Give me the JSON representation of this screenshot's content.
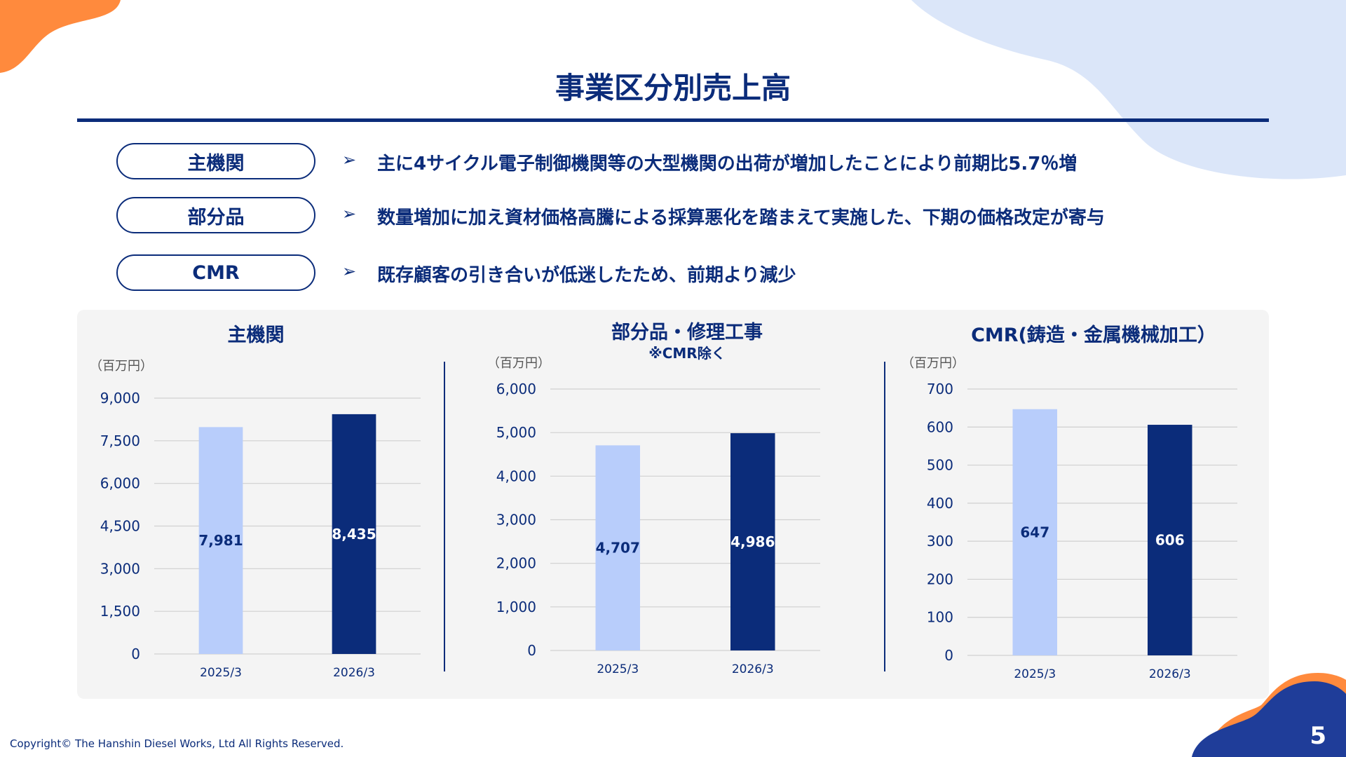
{
  "page": {
    "title": "事業区分別売上高",
    "copyright": "Copyright© The Hanshin Diesel Works, Ltd All Rights Reserved.",
    "page_number": "5"
  },
  "colors": {
    "navy": "#0b2c7a",
    "light_blue": "#b8cdfb",
    "orange": "#ff8a3d",
    "pale_blue": "#dbe6f9",
    "panel_bg": "#f4f4f4"
  },
  "segments": [
    {
      "label": "主機関",
      "arrow": "➢",
      "comment": "主に4サイクル電子制御機関等の大型機関の出荷が増加したことにより前期比5.7％増"
    },
    {
      "label": "部分品",
      "arrow": "➢",
      "comment": "数量増加に加え資材価格高騰による採算悪化を踏まえて実施した、下期の価格改定が寄与"
    },
    {
      "label": "CMR",
      "arrow": "➢",
      "comment": "既存顧客の引き合いが低迷したため、前期より減少"
    }
  ],
  "chart_data": [
    {
      "type": "bar",
      "title": "主機関",
      "subtitle": "",
      "unit": "（百万円）",
      "categories": [
        "2025/3",
        "2026/3"
      ],
      "values": [
        7981,
        8435
      ],
      "value_labels": [
        "7,981",
        "8,435"
      ],
      "ylim": [
        0,
        9000
      ],
      "yticks": [
        "0",
        "1,500",
        "3,000",
        "4,500",
        "6,000",
        "7,500",
        "9,000"
      ],
      "bar_colors": [
        "#b8cdfb",
        "#0b2c7a"
      ],
      "label_colors": [
        "#0b2c7a",
        "#ffffff"
      ],
      "grid": true
    },
    {
      "type": "bar",
      "title": "部分品・修理工事",
      "subtitle": "※CMR除く",
      "unit": "（百万円）",
      "categories": [
        "2025/3",
        "2026/3"
      ],
      "values": [
        4707,
        4986
      ],
      "value_labels": [
        "4,707",
        "4,986"
      ],
      "ylim": [
        0,
        6000
      ],
      "yticks": [
        "0",
        "1,000",
        "2,000",
        "3,000",
        "4,000",
        "5,000",
        "6,000"
      ],
      "bar_colors": [
        "#b8cdfb",
        "#0b2c7a"
      ],
      "label_colors": [
        "#0b2c7a",
        "#ffffff"
      ],
      "grid": true
    },
    {
      "type": "bar",
      "title": "CMR(鋳造・金属機械加工）",
      "subtitle": "",
      "unit": "（百万円）",
      "categories": [
        "2025/3",
        "2026/3"
      ],
      "values": [
        647,
        606
      ],
      "value_labels": [
        "647",
        "606"
      ],
      "ylim": [
        0,
        700
      ],
      "yticks": [
        "0",
        "100",
        "200",
        "300",
        "400",
        "500",
        "600",
        "700"
      ],
      "bar_colors": [
        "#b8cdfb",
        "#0b2c7a"
      ],
      "label_colors": [
        "#0b2c7a",
        "#ffffff"
      ],
      "grid": true
    }
  ]
}
